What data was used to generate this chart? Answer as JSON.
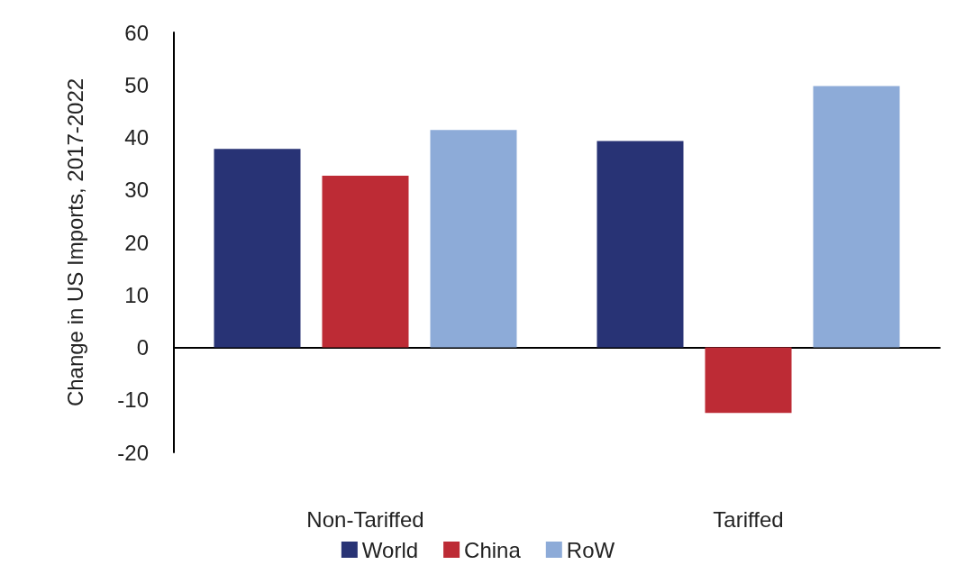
{
  "chart_data": {
    "type": "bar",
    "ylabel": "Change in US Imports, 2017-2022",
    "categories": [
      "Non-Tariffed",
      "Tariffed"
    ],
    "series": [
      {
        "name": "World",
        "color": "#283375",
        "values": [
          37.8,
          39.3
        ]
      },
      {
        "name": "China",
        "color": "#bd2b35",
        "values": [
          32.7,
          -12.5
        ]
      },
      {
        "name": "RoW",
        "color": "#8dabd8",
        "values": [
          41.4,
          49.8
        ]
      }
    ],
    "ylim": [
      -20,
      60
    ],
    "yticks": [
      -20,
      -10,
      0,
      10,
      20,
      30,
      40,
      50,
      60
    ],
    "legend": "bottom"
  }
}
